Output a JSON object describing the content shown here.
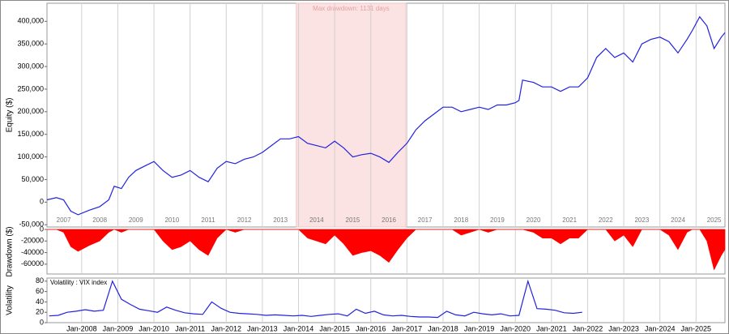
{
  "chart_data": [
    {
      "type": "line",
      "y_label": "Equity ($)",
      "color": "#2222dd",
      "shade": {
        "x": [
          2013.94,
          2016.97
        ],
        "label": "Max drawdown: 1131 days",
        "color": "#fbe3e3"
      },
      "xlim": [
        2007.04,
        2025.8
      ],
      "ylim": [
        -55000,
        440000
      ],
      "yticks": [
        {
          "value": -50000,
          "label": "-50,000"
        },
        0,
        {
          "value": 50000,
          "label": "50,000"
        },
        {
          "value": 100000,
          "label": "100,000"
        },
        {
          "value": 150000,
          "label": "150,000"
        },
        {
          "value": 200000,
          "label": "200,000"
        },
        {
          "value": 250000,
          "label": "250,000"
        },
        {
          "value": 300000,
          "label": "300,000"
        },
        {
          "value": 350000,
          "label": "350,000"
        },
        {
          "value": 400000,
          "label": "400,000"
        }
      ],
      "xticks": [
        {
          "value": 2007.5,
          "label": "2007"
        },
        {
          "value": 2008.5,
          "label": "2008"
        },
        {
          "value": 2009.5,
          "label": "2009"
        },
        {
          "value": 2010.5,
          "label": "2010"
        },
        {
          "value": 2011.5,
          "label": "2011"
        },
        {
          "value": 2012.5,
          "label": "2012"
        },
        {
          "value": 2013.5,
          "label": "2013"
        },
        {
          "value": 2014.5,
          "label": "2014"
        },
        {
          "value": 2015.5,
          "label": "2015"
        },
        {
          "value": 2016.5,
          "label": "2016"
        },
        {
          "value": 2017.5,
          "label": "2017"
        },
        {
          "value": 2018.5,
          "label": "2018"
        },
        {
          "value": 2019.5,
          "label": "2019"
        },
        {
          "value": 2020.5,
          "label": "2020"
        },
        {
          "value": 2021.5,
          "label": "2021"
        },
        {
          "value": 2022.5,
          "label": "2022"
        },
        {
          "value": 2023.5,
          "label": "2023"
        },
        {
          "value": 2024.5,
          "label": "2024"
        },
        {
          "value": 2025.5,
          "label": "2025"
        }
      ],
      "x": [
        2007.04,
        2007.3,
        2007.5,
        2007.7,
        2007.9,
        2008.2,
        2008.5,
        2008.75,
        2008.9,
        2009.1,
        2009.3,
        2009.5,
        2009.75,
        2010.0,
        2010.25,
        2010.5,
        2010.75,
        2011.0,
        2011.25,
        2011.5,
        2011.75,
        2012.0,
        2012.25,
        2012.5,
        2012.75,
        2013.0,
        2013.25,
        2013.5,
        2013.75,
        2014.0,
        2014.25,
        2014.5,
        2014.75,
        2015.0,
        2015.25,
        2015.5,
        2015.75,
        2016.0,
        2016.25,
        2016.5,
        2016.75,
        2017.0,
        2017.25,
        2017.5,
        2017.75,
        2018.0,
        2018.25,
        2018.5,
        2018.75,
        2019.0,
        2019.25,
        2019.5,
        2019.75,
        2020.0,
        2020.1,
        2020.2,
        2020.5,
        2020.75,
        2021.0,
        2021.25,
        2021.5,
        2021.75,
        2022.0,
        2022.25,
        2022.5,
        2022.75,
        2023.0,
        2023.25,
        2023.5,
        2023.75,
        2024.0,
        2024.25,
        2024.5,
        2024.75,
        2024.9,
        2025.1,
        2025.3,
        2025.5,
        2025.7,
        2025.8
      ],
      "values": [
        5000,
        10000,
        5000,
        -20000,
        -28000,
        -18000,
        -10000,
        5000,
        35000,
        30000,
        55000,
        70000,
        80000,
        90000,
        70000,
        55000,
        60000,
        70000,
        55000,
        45000,
        75000,
        90000,
        85000,
        95000,
        100000,
        110000,
        125000,
        140000,
        140000,
        145000,
        130000,
        125000,
        120000,
        135000,
        120000,
        100000,
        105000,
        108000,
        100000,
        88000,
        110000,
        130000,
        160000,
        180000,
        195000,
        210000,
        210000,
        200000,
        205000,
        210000,
        205000,
        215000,
        215000,
        220000,
        225000,
        270000,
        265000,
        255000,
        255000,
        245000,
        255000,
        255000,
        275000,
        320000,
        340000,
        320000,
        330000,
        310000,
        350000,
        360000,
        365000,
        355000,
        330000,
        360000,
        380000,
        410000,
        390000,
        340000,
        365000,
        375000
      ]
    },
    {
      "type": "area",
      "y_label": "Drawdown ($)",
      "color": "#ff0000",
      "xlim": [
        2007.04,
        2025.8
      ],
      "ylim": [
        -77000,
        0
      ],
      "yticks": [
        -60000,
        -40000,
        -20000,
        0
      ],
      "x": [
        2007.04,
        2007.3,
        2007.5,
        2007.7,
        2007.9,
        2008.2,
        2008.5,
        2008.75,
        2008.9,
        2009.1,
        2009.3,
        2009.5,
        2009.75,
        2010.0,
        2010.25,
        2010.5,
        2010.75,
        2011.0,
        2011.25,
        2011.5,
        2011.75,
        2012.0,
        2012.25,
        2012.5,
        2012.75,
        2013.0,
        2013.25,
        2013.5,
        2013.75,
        2014.0,
        2014.25,
        2014.5,
        2014.75,
        2015.0,
        2015.25,
        2015.5,
        2015.75,
        2016.0,
        2016.25,
        2016.5,
        2016.75,
        2017.0,
        2017.25,
        2017.5,
        2017.75,
        2018.0,
        2018.25,
        2018.5,
        2018.75,
        2019.0,
        2019.25,
        2019.5,
        2019.75,
        2020.0,
        2020.1,
        2020.2,
        2020.5,
        2020.75,
        2021.0,
        2021.25,
        2021.5,
        2021.75,
        2022.0,
        2022.25,
        2022.5,
        2022.75,
        2023.0,
        2023.25,
        2023.5,
        2023.75,
        2024.0,
        2024.25,
        2024.5,
        2024.75,
        2024.9,
        2025.1,
        2025.3,
        2025.5,
        2025.7,
        2025.8
      ],
      "values": [
        0,
        0,
        -5000,
        -30000,
        -38000,
        -28000,
        -20000,
        -5000,
        0,
        -5000,
        0,
        0,
        0,
        0,
        -20000,
        -35000,
        -30000,
        -20000,
        -35000,
        -45000,
        -15000,
        0,
        -5000,
        0,
        0,
        0,
        0,
        0,
        0,
        0,
        -15000,
        -20000,
        -25000,
        -10000,
        -25000,
        -45000,
        -40000,
        -37000,
        -45000,
        -57000,
        -35000,
        -15000,
        0,
        0,
        0,
        0,
        0,
        -10000,
        -5000,
        0,
        -5000,
        0,
        0,
        0,
        0,
        0,
        -5000,
        -15000,
        -15000,
        -25000,
        -15000,
        -15000,
        0,
        0,
        0,
        -20000,
        -10000,
        -30000,
        0,
        0,
        0,
        -10000,
        -35000,
        -5000,
        0,
        0,
        -20000,
        -70000,
        -45000,
        -35000
      ]
    },
    {
      "type": "line",
      "y_label": "Volatility",
      "xlim": [
        2007.04,
        2025.8
      ],
      "ylim": [
        0,
        86
      ],
      "yticks": [
        0,
        20,
        40,
        60,
        80
      ],
      "xticks": [
        {
          "value": 2008,
          "label": "Jan-2008"
        },
        {
          "value": 2009,
          "label": "Jan-2009"
        },
        {
          "value": 2010,
          "label": "Jan-2010"
        },
        {
          "value": 2011,
          "label": "Jan-2011"
        },
        {
          "value": 2012,
          "label": "Jan-2012"
        },
        {
          "value": 2013,
          "label": "Jan-2013"
        },
        {
          "value": 2014,
          "label": "Jan-2014"
        },
        {
          "value": 2015,
          "label": "Jan-2015"
        },
        {
          "value": 2016,
          "label": "Jan-2016"
        },
        {
          "value": 2017,
          "label": "Jan-2017"
        },
        {
          "value": 2018,
          "label": "Jan-2018"
        },
        {
          "value": 2019,
          "label": "Jan-2019"
        },
        {
          "value": 2020,
          "label": "Jan-2020"
        },
        {
          "value": 2021,
          "label": "Jan-2021"
        },
        {
          "value": 2022,
          "label": "Jan-2022"
        },
        {
          "value": 2023,
          "label": "Jan-2023"
        },
        {
          "value": 2024,
          "label": "Jan-2024"
        },
        {
          "value": 2025,
          "label": "Jan-2025"
        }
      ],
      "x": [
        2007.1,
        2007.35,
        2007.6,
        2007.85,
        2008.1,
        2008.35,
        2008.6,
        2008.85,
        2009.1,
        2009.35,
        2009.6,
        2009.85,
        2010.1,
        2010.35,
        2010.6,
        2010.85,
        2011.1,
        2011.35,
        2011.6,
        2011.85,
        2012.1,
        2012.35,
        2012.6,
        2012.85,
        2013.1,
        2013.35,
        2013.6,
        2013.85,
        2014.1,
        2014.35,
        2014.6,
        2014.85,
        2015.1,
        2015.35,
        2015.6,
        2015.85,
        2016.1,
        2016.35,
        2016.6,
        2016.85,
        2017.1,
        2017.35,
        2017.6,
        2017.85,
        2018.1,
        2018.35,
        2018.6,
        2018.85,
        2019.1,
        2019.35,
        2019.6,
        2019.85,
        2020.1,
        2020.35,
        2020.6,
        2020.85,
        2021.1,
        2021.35,
        2021.6,
        2021.85
      ],
      "series": [
        {
          "name": "Volatility : VIX index",
          "color": "#2222dd",
          "values": [
            13,
            14,
            20,
            22,
            25,
            22,
            24,
            80,
            45,
            35,
            26,
            23,
            20,
            30,
            24,
            19,
            17,
            16,
            40,
            28,
            20,
            18,
            17,
            16,
            14,
            15,
            14,
            13,
            14,
            12,
            14,
            16,
            17,
            13,
            26,
            18,
            22,
            15,
            13,
            14,
            12,
            11,
            11,
            10,
            22,
            15,
            13,
            20,
            17,
            15,
            17,
            13,
            14,
            80,
            27,
            26,
            24,
            19,
            18,
            20
          ]
        }
      ]
    }
  ]
}
